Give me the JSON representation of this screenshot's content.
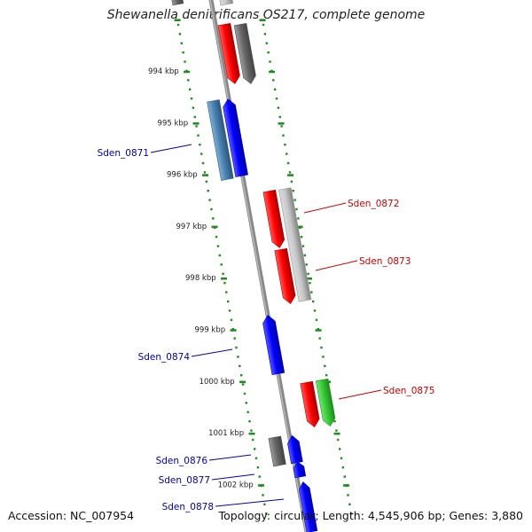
{
  "title": "Shewanella denitrificans OS217, complete genome",
  "accession": "Accession: NC_007954",
  "summary": "Topology: circular; Length: 4,545,906 bp; Genes: 3,880",
  "colors": {
    "backbone": "#888888",
    "tick": "#228B22",
    "label_forward": "#CC0000",
    "label_reverse": "#0000AA",
    "red": "#FF0000",
    "grey_dark": "#666666",
    "grey_light": "#C8C8C8",
    "blue": "#0000FF",
    "steel": "#4682B4",
    "green": "#33CC33"
  },
  "ticks": [
    "994 kbp",
    "995 kbp",
    "996 kbp",
    "997 kbp",
    "998 kbp",
    "999 kbp",
    "1000 kbp",
    "1001 kbp",
    "1002 kbp"
  ],
  "labels": [
    {
      "text": "Sden_0871",
      "strand": "reverse"
    },
    {
      "text": "Sden_0872",
      "strand": "forward"
    },
    {
      "text": "Sden_0873",
      "strand": "forward"
    },
    {
      "text": "Sden_0874",
      "strand": "reverse"
    },
    {
      "text": "Sden_0875",
      "strand": "forward"
    },
    {
      "text": "Sden_0876",
      "strand": "reverse"
    },
    {
      "text": "Sden_0877",
      "strand": "reverse"
    },
    {
      "text": "Sden_0878",
      "strand": "reverse"
    }
  ]
}
